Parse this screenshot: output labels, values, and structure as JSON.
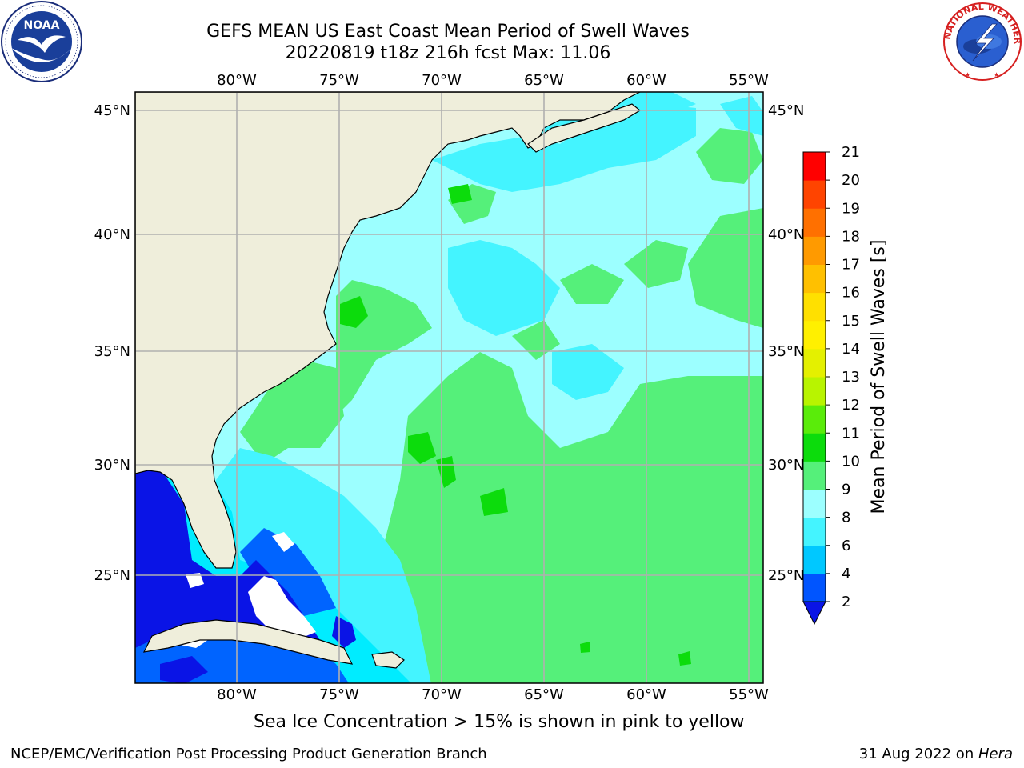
{
  "title": {
    "line1": "GEFS MEAN US East Coast Mean Period of Swell Waves",
    "line2": "20220819 t18z 216h fcst   Max: 11.06"
  },
  "map": {
    "lon_labels": [
      "80°W",
      "75°W",
      "70°W",
      "65°W",
      "60°W",
      "55°W"
    ],
    "lat_labels": [
      "45°N",
      "40°N",
      "35°N",
      "30°N",
      "25°N"
    ],
    "land_color": "#efeedb",
    "grid_color": "#b0b0b0"
  },
  "colorbar": {
    "title": "Mean Period of Swell Waves [s]",
    "ticks": [
      "2",
      "4",
      "6",
      "8",
      "9",
      "10",
      "11",
      "12",
      "13",
      "14",
      "15",
      "16",
      "17",
      "18",
      "19",
      "20",
      "21"
    ],
    "colors": [
      "#0055ff",
      "#00c8ff",
      "#44f4ff",
      "#9cffff",
      "#55f07a",
      "#0cdc0c",
      "#5aec0a",
      "#b8f400",
      "#e4f000",
      "#fff000",
      "#ffe000",
      "#ffc000",
      "#ff9a00",
      "#ff7000",
      "#ff4400",
      "#ff0000"
    ],
    "extend_color": "#0a14e6"
  },
  "legend_colors": {
    "deep_blue": "#0a14e6",
    "blue": "#0064ff",
    "cyan": "#00ecff",
    "light_cyan": "#9cffff",
    "light_green": "#55f07a",
    "green": "#0cdc0c"
  },
  "sea_ice_note": "Sea Ice Concentration > 15% is shown in pink to yellow",
  "footer": {
    "left": "NCEP/EMC/Verification Post Processing Product Generation Branch",
    "right_date": "31 Aug 2022 on ",
    "right_host": "Hera"
  },
  "logos": {
    "noaa_icon": "noaa-logo-icon",
    "nws_icon": "nws-logo-icon"
  }
}
